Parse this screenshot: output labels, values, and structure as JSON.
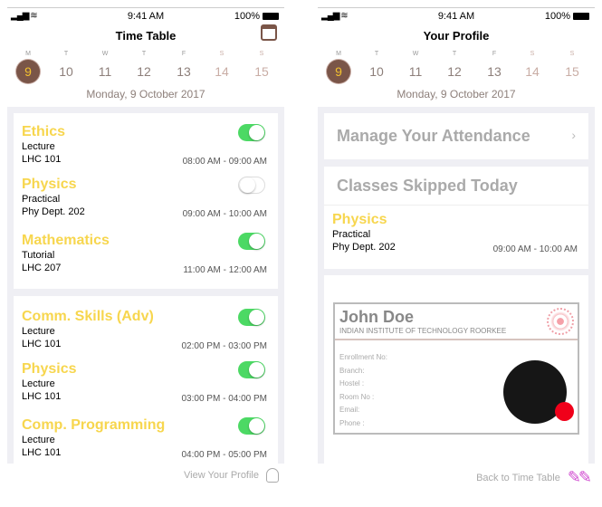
{
  "status": {
    "time": "9:41 AM",
    "battery": "100%"
  },
  "week": {
    "letters": [
      "M",
      "T",
      "W",
      "T",
      "F",
      "S",
      "S"
    ],
    "numbers": [
      "9",
      "10",
      "11",
      "12",
      "13",
      "14",
      "15"
    ],
    "selected_date": "Monday, 9 October 2017"
  },
  "timetable": {
    "title": "Time Table",
    "classes": [
      {
        "name": "Ethics",
        "type": "Lecture",
        "room": "LHC 101",
        "time": "08:00 AM - 09:00 AM",
        "on": true
      },
      {
        "name": "Physics",
        "type": "Practical",
        "room": "Phy Dept. 202",
        "time": "09:00 AM - 10:00 AM",
        "on": false
      },
      {
        "name": "Mathematics",
        "type": "Tutorial",
        "room": "LHC 207",
        "time": "11:00 AM - 12:00 AM",
        "on": true
      },
      {
        "name": "Comm. Skills (Adv)",
        "type": "Lecture",
        "room": "LHC 101",
        "time": "02:00 PM - 03:00 PM",
        "on": true
      },
      {
        "name": "Physics",
        "type": "Lecture",
        "room": "LHC 101",
        "time": "03:00 PM - 04:00 PM",
        "on": true
      },
      {
        "name": "Comp. Programming",
        "type": "Lecture",
        "room": "LHC 101",
        "time": "04:00 PM - 05:00 PM",
        "on": true
      }
    ],
    "footer": "View Your Profile"
  },
  "profile": {
    "title": "Your Profile",
    "manage": "Manage Your Attendance",
    "skipped_title": "Classes Skipped Today",
    "skipped": {
      "name": "Physics",
      "type": "Practical",
      "room": "Phy Dept. 202",
      "time": "09:00 AM - 10:00 AM"
    },
    "id": {
      "name": "John Doe",
      "institute": "INDIAN INSTITUTE OF TECHNOLOGY ROORKEE",
      "fields": [
        "Enrollment No:",
        "Branch:",
        "Hostel :",
        "Room No :",
        "Email:",
        "Phone :"
      ]
    },
    "footer": "Back to Time Table"
  },
  "colors": {
    "accent": "#f7d64e",
    "toggle": "#4cd964",
    "brown": "#7a5548"
  }
}
